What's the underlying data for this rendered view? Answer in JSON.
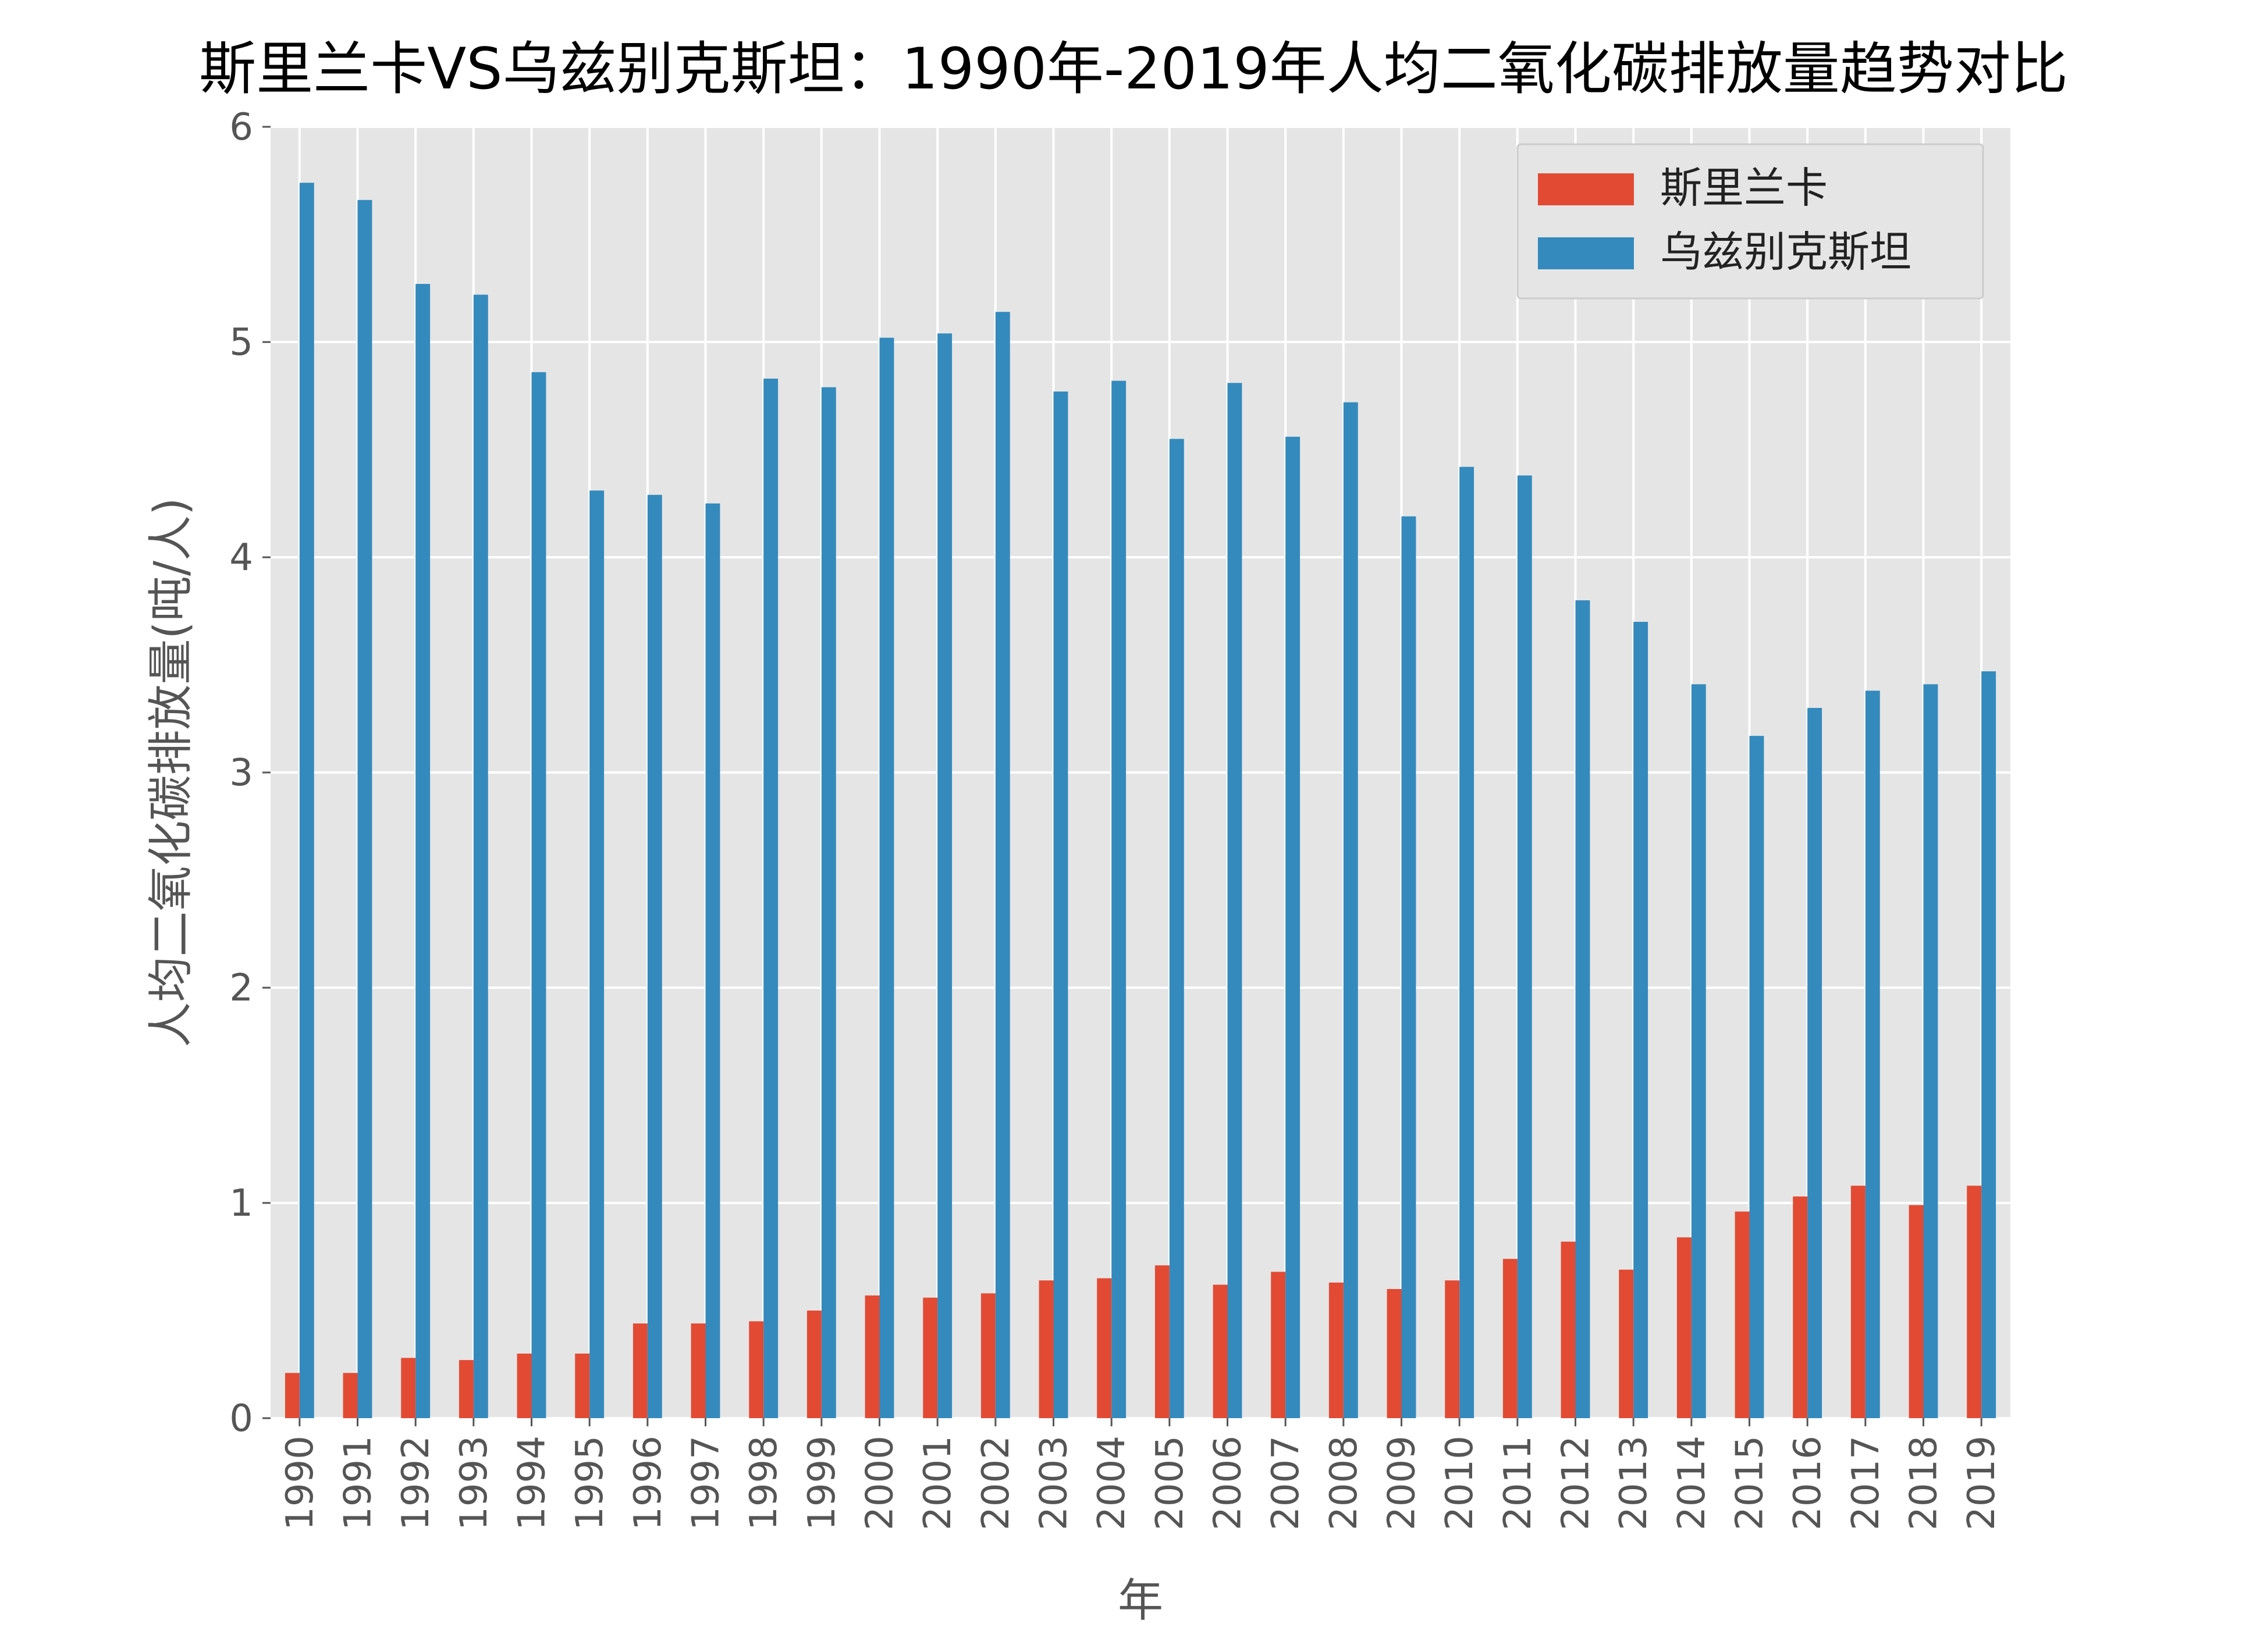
{
  "chart_data": {
    "type": "bar",
    "title": "斯里兰卡VS乌兹别克斯坦：1990年-2019年人均二氧化碳排放量趋势对比",
    "xlabel": "年",
    "ylabel": "人均二氧化碳排放量(吨/人)",
    "ylim": [
      0,
      6
    ],
    "yticks": [
      "0",
      "1",
      "2",
      "3",
      "4",
      "5",
      "6"
    ],
    "grid": true,
    "legend_position": "top-right",
    "categories": [
      "1990",
      "1991",
      "1992",
      "1993",
      "1994",
      "1995",
      "1996",
      "1997",
      "1998",
      "1999",
      "2000",
      "2001",
      "2002",
      "2003",
      "2004",
      "2005",
      "2006",
      "2007",
      "2008",
      "2009",
      "2010",
      "2011",
      "2012",
      "2013",
      "2014",
      "2015",
      "2016",
      "2017",
      "2018",
      "2019"
    ],
    "series": [
      {
        "name": "斯里兰卡",
        "color": "#E24A33",
        "values": [
          0.21,
          0.21,
          0.28,
          0.27,
          0.3,
          0.3,
          0.44,
          0.44,
          0.45,
          0.5,
          0.57,
          0.56,
          0.58,
          0.64,
          0.65,
          0.71,
          0.62,
          0.68,
          0.63,
          0.6,
          0.64,
          0.74,
          0.82,
          0.69,
          0.84,
          0.96,
          1.03,
          1.08,
          0.99,
          1.08
        ]
      },
      {
        "name": "乌兹别克斯坦",
        "color": "#348ABD",
        "values": [
          5.74,
          5.66,
          5.27,
          5.22,
          4.86,
          4.31,
          4.29,
          4.25,
          4.83,
          4.79,
          5.02,
          5.04,
          5.14,
          4.77,
          4.82,
          4.55,
          4.81,
          4.56,
          4.72,
          4.19,
          4.42,
          4.38,
          3.8,
          3.7,
          3.41,
          3.17,
          3.3,
          3.38,
          3.41,
          3.47
        ]
      }
    ]
  }
}
